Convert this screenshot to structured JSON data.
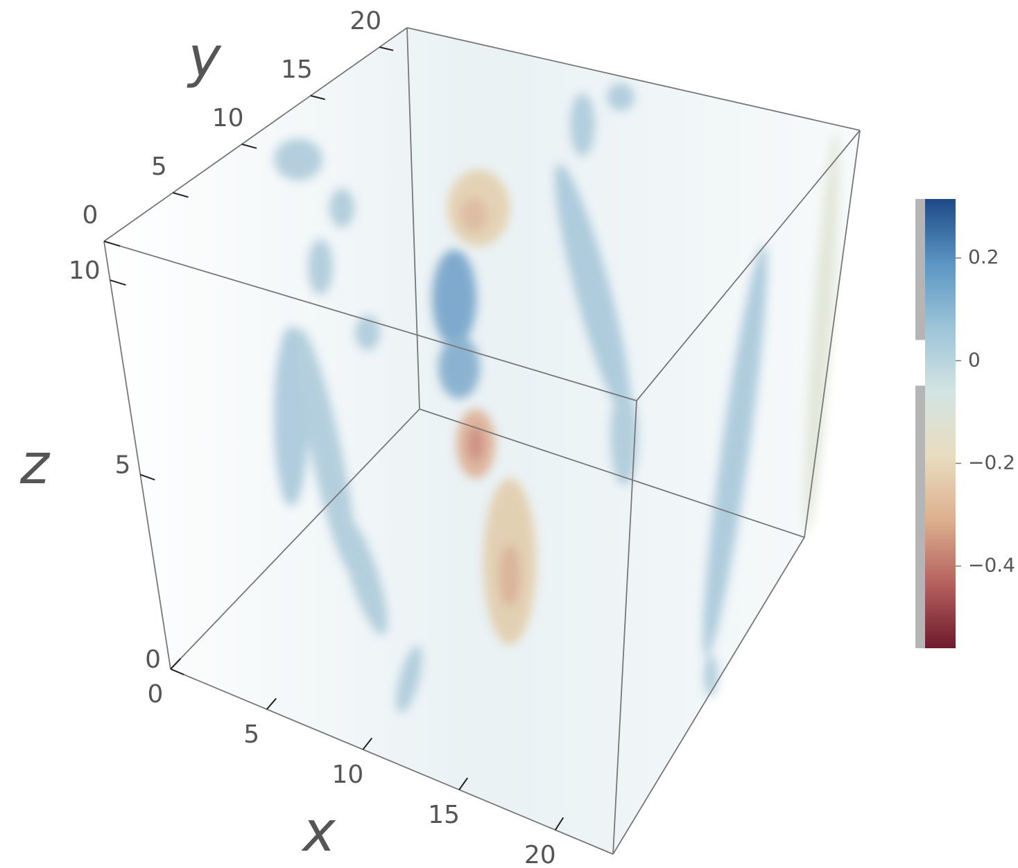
{
  "chart_data": {
    "type": "volume3d",
    "xlabel": "x",
    "ylabel": "y",
    "zlabel": "z",
    "xlim": [
      0,
      23
    ],
    "ylim": [
      0,
      22
    ],
    "zlim": [
      0,
      11
    ],
    "xticks": [
      0,
      5,
      10,
      15,
      20
    ],
    "yticks": [
      0,
      5,
      10,
      15,
      20
    ],
    "zticks": [
      0,
      5,
      10
    ],
    "colorbar": {
      "lim": [
        -0.56,
        0.315
      ],
      "ticks": [
        {
          "value": 0.2,
          "label": "0.2"
        },
        0,
        {
          "value": -0.2,
          "label": "−0.2"
        },
        {
          "value": -0.4,
          "label": "−0.4"
        }
      ],
      "colors": [
        "#6e1a2c",
        "#b5605e",
        "#ddb08e",
        "#e8dcc0",
        "#d3e4e2",
        "#9cc4d8",
        "#5b95c3",
        "#1d4a86"
      ]
    }
  }
}
